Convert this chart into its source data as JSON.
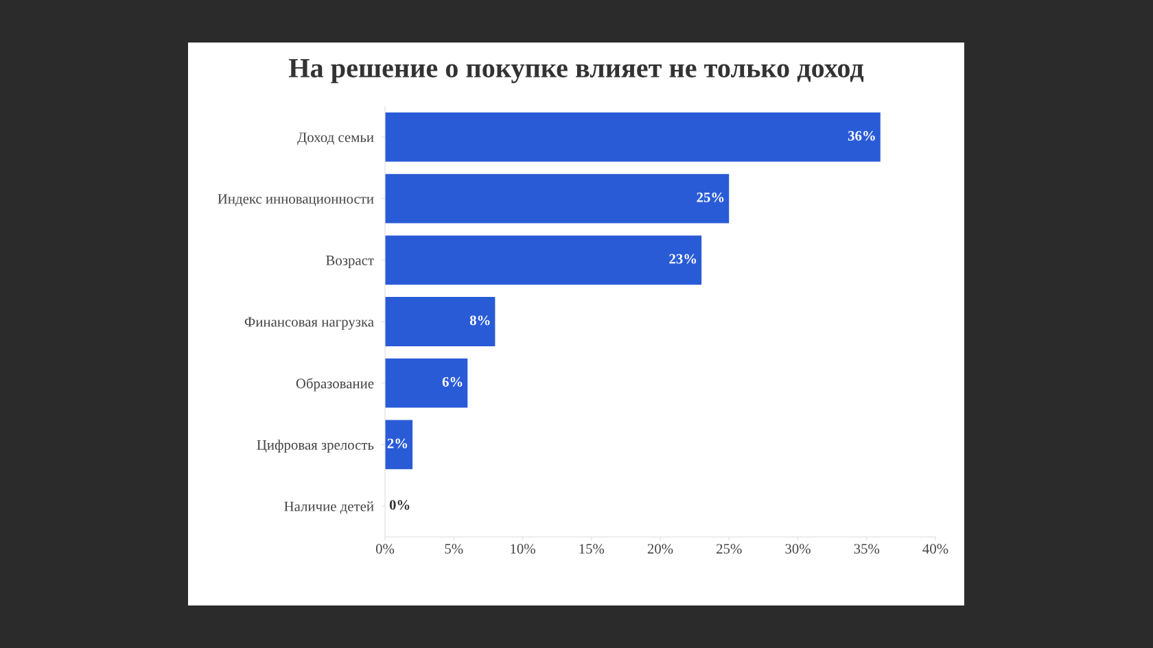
{
  "chart_data": {
    "type": "bar",
    "orientation": "horizontal",
    "title": "На решение о покупке влияет не только доход",
    "categories": [
      "Доход семьи",
      "Индекс инновационности",
      "Возраст",
      "Финансовая нагрузка",
      "Образование",
      "Цифровая зрелость",
      "Наличие детей"
    ],
    "values": [
      36,
      25,
      23,
      8,
      6,
      2,
      0
    ],
    "value_labels": [
      "36%",
      "25%",
      "23%",
      "8%",
      "6%",
      "2%",
      "0%"
    ],
    "color": "#2a5bd7",
    "xlim": [
      0,
      40
    ],
    "xticks": [
      {
        "value": 0,
        "label": "0%"
      },
      {
        "value": 5,
        "label": "5%"
      },
      {
        "value": 10,
        "label": "10%"
      },
      {
        "value": 15,
        "label": "15%"
      },
      {
        "value": 20,
        "label": "20%"
      },
      {
        "value": 25,
        "label": "25%"
      },
      {
        "value": 30,
        "label": "30%"
      },
      {
        "value": 35,
        "label": "35%"
      },
      {
        "value": 40,
        "label": "40%"
      }
    ],
    "grid": false,
    "legend": false
  }
}
